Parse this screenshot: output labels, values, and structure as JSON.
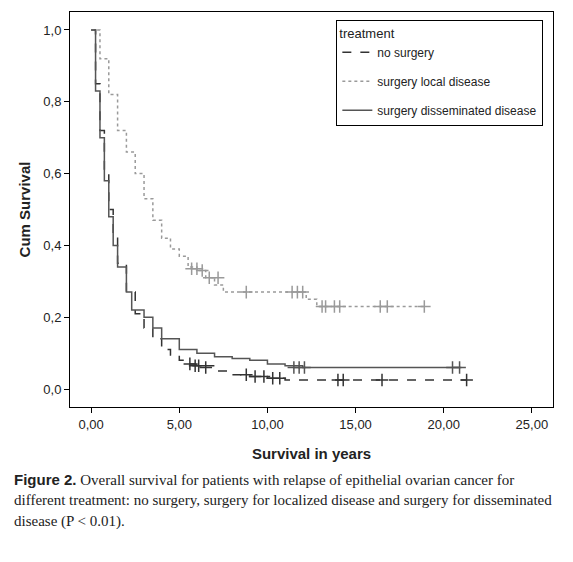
{
  "chart_data": {
    "type": "line",
    "x_label": "Survival in years",
    "y_label": "Cum Survival",
    "legend_title": "treatment",
    "legend": "top right",
    "grid": false,
    "caption_label": "Figure 2.",
    "caption": "Overall survival for patients with relapse of epithelial ovarian cancer for different treatment: no surgery, surgery for localized disease and surgery for disseminated disease (P < 0.01).",
    "xlim": [
      -1.2,
      26.2
    ],
    "xticks": [
      {
        "value": 0,
        "label": "0,00"
      },
      {
        "value": 5,
        "label": "5,00"
      },
      {
        "value": 10,
        "label": "10,00"
      },
      {
        "value": 15,
        "label": "15,00"
      },
      {
        "value": 20,
        "label": "20,00"
      },
      {
        "value": 25,
        "label": "25,00"
      }
    ],
    "ylim": [
      -0.05,
      1.05
    ],
    "yticks": [
      {
        "value": 0,
        "label": "0,0"
      },
      {
        "value": 0.2,
        "label": "0,2"
      },
      {
        "value": 0.4,
        "label": "0,4"
      },
      {
        "value": 0.6,
        "label": "0,6"
      },
      {
        "value": 0.8,
        "label": "0,8"
      },
      {
        "value": 1,
        "label": "1,0"
      }
    ],
    "series": [
      {
        "name": "no surgery",
        "color": "#333333",
        "line_style": "dash",
        "marker": "cross",
        "x": [
          0,
          0.25,
          0.5,
          0.75,
          1,
          1.25,
          1.5,
          2,
          2.5,
          3,
          3.5,
          4,
          4.5,
          5,
          5.5,
          6,
          7,
          8,
          9,
          10,
          11,
          21.3
        ],
        "values": [
          1,
          0.85,
          0.72,
          0.6,
          0.5,
          0.42,
          0.35,
          0.27,
          0.21,
          0.17,
          0.14,
          0.11,
          0.095,
          0.08,
          0.07,
          0.065,
          0.05,
          0.04,
          0.035,
          0.03,
          0.025,
          0.025
        ],
        "censored": {
          "x": [
            5.6,
            5.9,
            6.1,
            6.5,
            8.8,
            9.3,
            9.8,
            10.3,
            10.7,
            14.0,
            14.3,
            16.5,
            21.3
          ],
          "values": [
            0.07,
            0.065,
            0.065,
            0.06,
            0.04,
            0.035,
            0.035,
            0.03,
            0.03,
            0.025,
            0.025,
            0.025,
            0.025
          ]
        }
      },
      {
        "name": "surgery local disease",
        "color": "#9a9a9a",
        "line_style": "dot",
        "marker": "cross",
        "x": [
          0,
          0.5,
          1,
          1.5,
          2,
          2.5,
          3,
          3.5,
          4,
          4.5,
          5,
          5.5,
          6,
          6.5,
          7,
          7.5,
          12.2,
          12.8,
          18.9
        ],
        "values": [
          1,
          0.92,
          0.82,
          0.72,
          0.66,
          0.6,
          0.53,
          0.47,
          0.42,
          0.39,
          0.37,
          0.34,
          0.33,
          0.31,
          0.29,
          0.27,
          0.25,
          0.23,
          0.23
        ],
        "censored": {
          "x": [
            5.7,
            6.0,
            6.3,
            6.7,
            7.2,
            8.8,
            11.4,
            11.7,
            12.0,
            13.1,
            13.3,
            13.8,
            14.1,
            16.4,
            16.8,
            18.9
          ],
          "values": [
            0.335,
            0.335,
            0.33,
            0.31,
            0.31,
            0.27,
            0.27,
            0.27,
            0.27,
            0.23,
            0.23,
            0.23,
            0.23,
            0.23,
            0.23,
            0.23
          ]
        }
      },
      {
        "name": "surgery disseminated disease",
        "color": "#555555",
        "line_style": "solid",
        "marker": "cross",
        "x": [
          0,
          0.25,
          0.5,
          0.75,
          1,
          1.25,
          1.5,
          2,
          2.3,
          3,
          3.5,
          4,
          5,
          6,
          7,
          8,
          9,
          10,
          11,
          12,
          21
        ],
        "values": [
          1,
          0.83,
          0.7,
          0.58,
          0.48,
          0.4,
          0.34,
          0.27,
          0.22,
          0.2,
          0.17,
          0.14,
          0.11,
          0.1,
          0.09,
          0.085,
          0.08,
          0.07,
          0.065,
          0.06,
          0.06
        ],
        "censored": {
          "x": [
            11.5,
            11.8,
            12.1,
            20.5,
            20.9
          ],
          "values": [
            0.06,
            0.06,
            0.06,
            0.06,
            0.06
          ]
        }
      }
    ]
  }
}
